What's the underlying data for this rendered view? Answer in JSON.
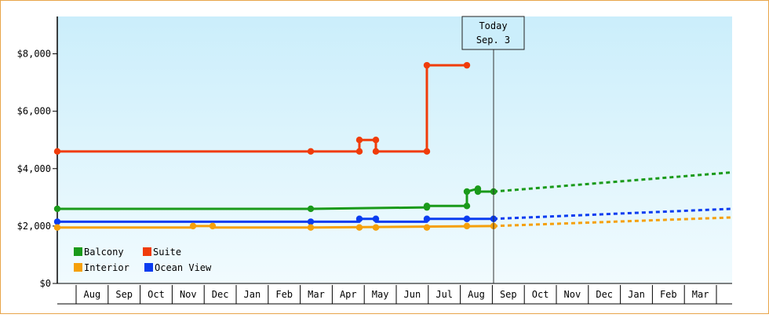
{
  "chart_data": {
    "type": "line",
    "x_axis_months": [
      "Aug",
      "Sep",
      "Oct",
      "Nov",
      "Dec",
      "Jan",
      "Feb",
      "Mar",
      "Apr",
      "May",
      "Jun",
      "Jul",
      "Aug",
      "Sep",
      "Oct",
      "Nov",
      "Dec",
      "Jan",
      "Feb",
      "Mar"
    ],
    "y_ticks": [
      "$0",
      "$2,000",
      "$4,000",
      "$6,000",
      "$8,000"
    ],
    "ylim": [
      0,
      9300
    ],
    "today_label": [
      "Today",
      "Sep. 3"
    ],
    "legend": [
      {
        "name": "Balcony",
        "color": "#1a9a1a"
      },
      {
        "name": "Suite",
        "color": "#f03c0a"
      },
      {
        "name": "Interior",
        "color": "#f5a00a"
      },
      {
        "name": "Ocean View",
        "color": "#0a3cf0"
      }
    ],
    "series": [
      {
        "name": "Suite",
        "color": "#f03c0a",
        "points": [
          [
            "Jul 1",
            4600
          ],
          [
            "Mar 1",
            4600
          ],
          [
            "Apr 2",
            4600
          ],
          [
            "Apr 2",
            5000
          ],
          [
            "Apr 18",
            5000
          ],
          [
            "Apr 18",
            4600
          ],
          [
            "Jun 1",
            4600
          ],
          [
            "Jun 1",
            7600
          ],
          [
            "Aug 1",
            7600
          ]
        ],
        "markers": [
          [
            "Jul 1",
            4600
          ],
          [
            "Mar 1",
            4600
          ],
          [
            "Apr 2",
            4600
          ],
          [
            "Apr 2",
            5000
          ],
          [
            "Apr 18",
            5000
          ],
          [
            "Apr 18",
            4600
          ],
          [
            "Jun 1",
            4600
          ],
          [
            "Jun 1",
            7600
          ],
          [
            "Aug 1",
            7600
          ]
        ],
        "projection": []
      },
      {
        "name": "Balcony",
        "color": "#1a9a1a",
        "points": [
          [
            "Jul 1",
            2600
          ],
          [
            "Mar 1",
            2600
          ],
          [
            "Jun 1",
            2650
          ],
          [
            "Jun 1",
            2700
          ],
          [
            "Aug 1",
            2700
          ],
          [
            "Aug 1",
            3200
          ],
          [
            "Aug 12",
            3300
          ],
          [
            "Aug 12",
            3200
          ],
          [
            "Sep 3",
            3200
          ]
        ],
        "markers": [
          [
            "Jul 1",
            2600
          ],
          [
            "Mar 1",
            2600
          ],
          [
            "Jun 1",
            2650
          ],
          [
            "Jun 1",
            2700
          ],
          [
            "Aug 1",
            2700
          ],
          [
            "Aug 1",
            3200
          ],
          [
            "Aug 12",
            3300
          ],
          [
            "Aug 12",
            3200
          ],
          [
            "Sep 3",
            3200
          ]
        ],
        "projection": [
          [
            "Sep 3",
            3200
          ],
          [
            "Apr 1",
            3870
          ]
        ]
      },
      {
        "name": "Ocean View",
        "color": "#0a3cf0",
        "points": [
          [
            "Jul 1",
            2150
          ],
          [
            "Mar 1",
            2150
          ],
          [
            "Apr 2",
            2150
          ],
          [
            "Apr 2",
            2250
          ],
          [
            "Apr 18",
            2250
          ],
          [
            "Apr 18",
            2150
          ],
          [
            "Jun 1",
            2150
          ],
          [
            "Jun 1",
            2250
          ],
          [
            "Sep 3",
            2250
          ]
        ],
        "markers": [
          [
            "Jul 1",
            2150
          ],
          [
            "Mar 1",
            2150
          ],
          [
            "Apr 2",
            2250
          ],
          [
            "Apr 18",
            2250
          ],
          [
            "Jun 1",
            2250
          ],
          [
            "Aug 1",
            2250
          ],
          [
            "Sep 3",
            2250
          ]
        ],
        "projection": [
          [
            "Sep 3",
            2250
          ],
          [
            "Apr 1",
            2600
          ]
        ]
      },
      {
        "name": "Interior",
        "color": "#f5a00a",
        "points": [
          [
            "Jul 1",
            1950
          ],
          [
            "Nov 1",
            1950
          ],
          [
            "Nov 1",
            2000
          ],
          [
            "Dec 1",
            2000
          ],
          [
            "Dec 1",
            1950
          ],
          [
            "Mar 1",
            1950
          ],
          [
            "Sep 3",
            2000
          ]
        ],
        "markers": [
          [
            "Jul 1",
            1950
          ],
          [
            "Nov 1",
            2000
          ],
          [
            "Dec 1",
            2000
          ],
          [
            "Mar 1",
            1950
          ],
          [
            "Apr 2",
            1950
          ],
          [
            "Apr 18",
            1950
          ],
          [
            "Jun 1",
            1950
          ],
          [
            "Aug 1",
            2000
          ],
          [
            "Sep 3",
            2000
          ]
        ],
        "projection": [
          [
            "Sep 3",
            2000
          ],
          [
            "Apr 1",
            2300
          ]
        ]
      }
    ]
  }
}
